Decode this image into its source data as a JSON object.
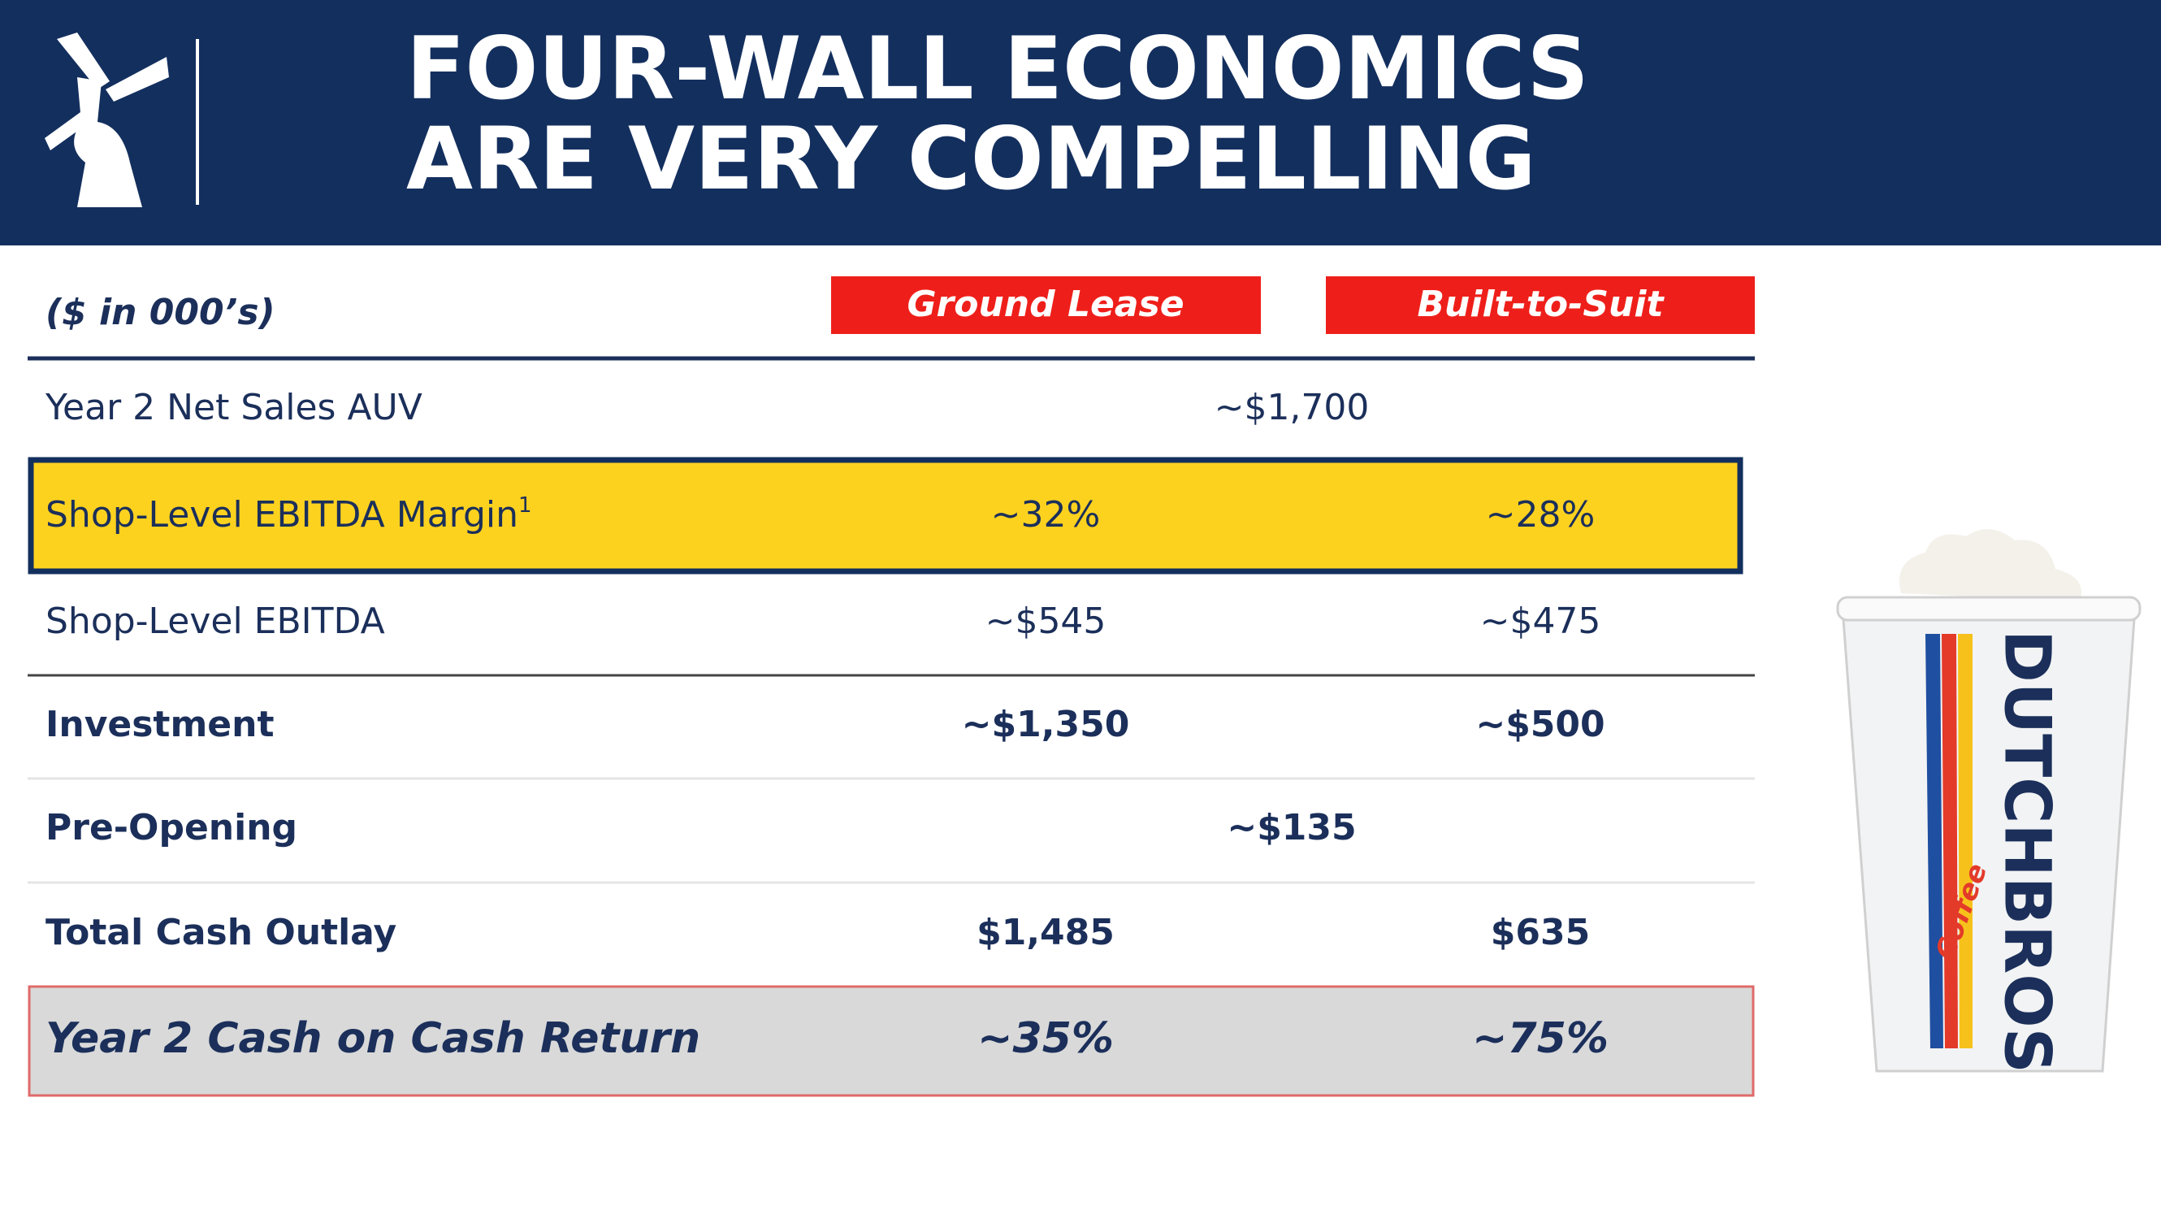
{
  "header": {
    "title_lines": [
      "FOUR-WALL ECONOMICS",
      "ARE VERY COMPELLING"
    ]
  },
  "table": {
    "units": "($ in 000’s)",
    "columns": [
      "Ground Lease",
      "Built-to-Suit"
    ],
    "rows": [
      {
        "label": "Year 2 Net Sales AUV",
        "values": [
          "~$1,700"
        ]
      },
      {
        "label": "Shop-Level EBITDA Margin",
        "footnote": "1",
        "values": [
          "~32%",
          "~28%"
        ]
      },
      {
        "label": "Shop-Level EBITDA",
        "values": [
          "~$545",
          "~$475"
        ]
      },
      {
        "label": "Investment",
        "values": [
          "~$1,350",
          "~$500"
        ]
      },
      {
        "label": "Pre-Opening",
        "values": [
          "~$135"
        ]
      },
      {
        "label": "Total Cash Outlay",
        "values": [
          "$1,485",
          "$635"
        ]
      },
      {
        "label": "Year 2 Cash on Cash Return",
        "values": [
          "~35%",
          "~75%"
        ]
      }
    ]
  },
  "product": {
    "brand": "DUTCHBROS",
    "script": "Coffee"
  }
}
